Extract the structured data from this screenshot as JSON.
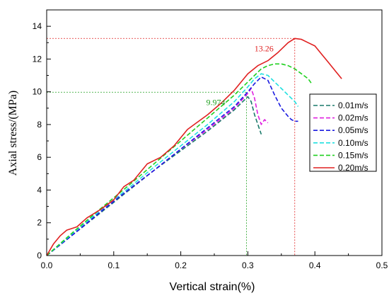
{
  "chart_data": {
    "type": "line",
    "title": "",
    "xlabel": "Vertical strain(%)",
    "ylabel": "Axial stress/(MPa)",
    "xlim": [
      0,
      0.5
    ],
    "ylim": [
      0,
      15
    ],
    "x_ticks": [
      0.0,
      0.1,
      0.2,
      0.3,
      0.4,
      0.5
    ],
    "x_tick_labels": [
      "0.0",
      "0.1",
      "0.2",
      "0.3",
      "0.4",
      "0.5"
    ],
    "y_ticks": [
      0,
      2,
      4,
      6,
      8,
      10,
      12,
      14
    ],
    "y_tick_labels": [
      "0",
      "2",
      "4",
      "6",
      "8",
      "10",
      "12",
      "14"
    ],
    "grid": false,
    "legend_position": "right",
    "series": [
      {
        "name": "0.01m/s",
        "color": "#1a7a6a",
        "style": "dashed",
        "points": [
          [
            0.0,
            0.0
          ],
          [
            0.04,
            1.3
          ],
          [
            0.08,
            2.6
          ],
          [
            0.12,
            3.9
          ],
          [
            0.16,
            5.2
          ],
          [
            0.2,
            6.4
          ],
          [
            0.24,
            7.6
          ],
          [
            0.28,
            8.9
          ],
          [
            0.3,
            9.7
          ],
          [
            0.305,
            9.4
          ],
          [
            0.31,
            8.6
          ],
          [
            0.315,
            8.0
          ],
          [
            0.32,
            7.4
          ]
        ]
      },
      {
        "name": "0.02m/s",
        "color": "#e020e0",
        "style": "dashed",
        "points": [
          [
            0.0,
            0.0
          ],
          [
            0.04,
            1.35
          ],
          [
            0.08,
            2.7
          ],
          [
            0.12,
            3.95
          ],
          [
            0.16,
            5.2
          ],
          [
            0.2,
            6.5
          ],
          [
            0.24,
            7.7
          ],
          [
            0.28,
            9.0
          ],
          [
            0.3,
            9.9
          ],
          [
            0.305,
            10.2
          ],
          [
            0.31,
            9.6
          ],
          [
            0.315,
            8.6
          ],
          [
            0.32,
            8.0
          ],
          [
            0.325,
            8.3
          ],
          [
            0.33,
            8.1
          ]
        ]
      },
      {
        "name": "0.05m/s",
        "color": "#1a1ae0",
        "style": "dashed",
        "points": [
          [
            0.0,
            0.0
          ],
          [
            0.04,
            1.3
          ],
          [
            0.08,
            2.65
          ],
          [
            0.12,
            3.95
          ],
          [
            0.16,
            5.2
          ],
          [
            0.2,
            6.5
          ],
          [
            0.24,
            7.8
          ],
          [
            0.28,
            9.1
          ],
          [
            0.3,
            10.0
          ],
          [
            0.31,
            10.5
          ],
          [
            0.32,
            10.9
          ],
          [
            0.33,
            10.7
          ],
          [
            0.34,
            9.8
          ],
          [
            0.35,
            9.0
          ],
          [
            0.36,
            8.5
          ],
          [
            0.365,
            8.3
          ],
          [
            0.37,
            8.2
          ],
          [
            0.375,
            8.2
          ]
        ]
      },
      {
        "name": "0.10m/s",
        "color": "#20e0e0",
        "style": "dashed",
        "points": [
          [
            0.0,
            0.0
          ],
          [
            0.04,
            1.4
          ],
          [
            0.08,
            2.75
          ],
          [
            0.12,
            4.05
          ],
          [
            0.16,
            5.4
          ],
          [
            0.2,
            6.7
          ],
          [
            0.24,
            8.0
          ],
          [
            0.28,
            9.4
          ],
          [
            0.3,
            10.3
          ],
          [
            0.31,
            10.8
          ],
          [
            0.32,
            11.1
          ],
          [
            0.33,
            11.0
          ],
          [
            0.34,
            10.6
          ],
          [
            0.35,
            10.2
          ],
          [
            0.36,
            9.8
          ],
          [
            0.37,
            9.4
          ],
          [
            0.375,
            9.1
          ]
        ]
      },
      {
        "name": "0.15m/s",
        "color": "#20d020",
        "style": "dashed",
        "points": [
          [
            0.0,
            0.0
          ],
          [
            0.04,
            1.45
          ],
          [
            0.08,
            2.85
          ],
          [
            0.12,
            4.2
          ],
          [
            0.16,
            5.6
          ],
          [
            0.2,
            7.0
          ],
          [
            0.24,
            8.4
          ],
          [
            0.28,
            9.8
          ],
          [
            0.3,
            10.6
          ],
          [
            0.31,
            11.0
          ],
          [
            0.32,
            11.4
          ],
          [
            0.33,
            11.6
          ],
          [
            0.34,
            11.7
          ],
          [
            0.35,
            11.7
          ],
          [
            0.36,
            11.6
          ],
          [
            0.37,
            11.4
          ],
          [
            0.38,
            11.1
          ],
          [
            0.39,
            10.8
          ],
          [
            0.395,
            10.5
          ]
        ]
      },
      {
        "name": "0.20m/s",
        "color": "#e02020",
        "style": "solid",
        "points": [
          [
            0.0,
            0.0
          ],
          [
            0.01,
            0.7
          ],
          [
            0.02,
            1.2
          ],
          [
            0.03,
            1.55
          ],
          [
            0.045,
            1.75
          ],
          [
            0.06,
            2.3
          ],
          [
            0.08,
            2.8
          ],
          [
            0.1,
            3.4
          ],
          [
            0.115,
            4.2
          ],
          [
            0.13,
            4.6
          ],
          [
            0.15,
            5.6
          ],
          [
            0.17,
            6.0
          ],
          [
            0.19,
            6.7
          ],
          [
            0.21,
            7.7
          ],
          [
            0.22,
            8.0
          ],
          [
            0.24,
            8.6
          ],
          [
            0.26,
            9.3
          ],
          [
            0.28,
            10.1
          ],
          [
            0.3,
            11.1
          ],
          [
            0.315,
            11.6
          ],
          [
            0.33,
            11.9
          ],
          [
            0.345,
            12.4
          ],
          [
            0.36,
            13.0
          ],
          [
            0.37,
            13.26
          ],
          [
            0.38,
            13.2
          ],
          [
            0.39,
            13.0
          ],
          [
            0.4,
            12.8
          ],
          [
            0.41,
            12.3
          ],
          [
            0.42,
            11.8
          ],
          [
            0.43,
            11.3
          ],
          [
            0.44,
            10.8
          ]
        ]
      }
    ],
    "annotations": [
      {
        "text": "13.26",
        "x": 0.37,
        "y": 13.26,
        "color": "#e02020"
      },
      {
        "text": "9.974",
        "x": 0.298,
        "y": 9.974,
        "color": "#20a020"
      }
    ]
  }
}
